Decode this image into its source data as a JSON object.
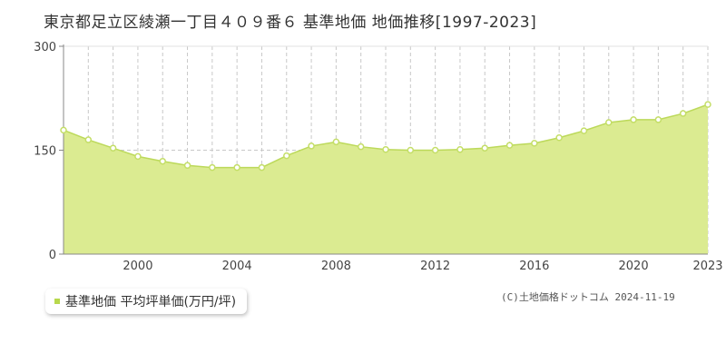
{
  "title": "東京都足立区綾瀬一丁目４０９番６ 基準地価 地価推移[1997-2023]",
  "legend_label": "基準地価 平均坪単価(万円/坪)",
  "credit": "(C)土地価格ドットコム 2024-11-19",
  "colors": {
    "fill": "#dbeb91",
    "line": "#bcd95a",
    "point_stroke": "#c4de67",
    "grid": "#c8c8c8",
    "accent": "#b8d84c"
  },
  "chart_data": {
    "type": "area",
    "title": "東京都足立区綾瀬一丁目４０９番６ 基準地価 地価推移[1997-2023]",
    "xlabel": "",
    "ylabel": "",
    "x": [
      1997,
      1998,
      1999,
      2000,
      2001,
      2002,
      2003,
      2004,
      2005,
      2006,
      2007,
      2008,
      2009,
      2010,
      2011,
      2012,
      2013,
      2014,
      2015,
      2016,
      2017,
      2018,
      2019,
      2020,
      2021,
      2022,
      2023
    ],
    "series": [
      {
        "name": "基準地価 平均坪単価(万円/坪)",
        "values": [
          179,
          165,
          153,
          141,
          134,
          128,
          125,
          125,
          125,
          142,
          156,
          162,
          155,
          151,
          150,
          150,
          151,
          153,
          157,
          160,
          168,
          178,
          190,
          194,
          194,
          203,
          216
        ]
      }
    ],
    "xlim": [
      1997,
      2023
    ],
    "ylim": [
      0,
      300
    ],
    "y_ticks": [
      "0",
      "150",
      "300"
    ],
    "x_ticks": [
      "2000",
      "2004",
      "2008",
      "2012",
      "2016",
      "2020",
      "2023"
    ],
    "grid": "vertical dashed per year, horizontal dashed at 150",
    "legend_position": "bottom-left"
  }
}
